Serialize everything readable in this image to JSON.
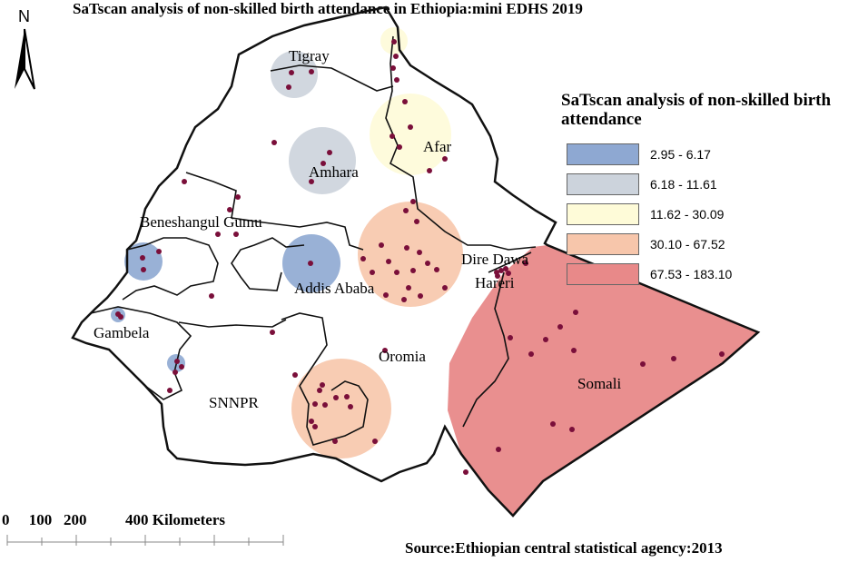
{
  "title": "SaTscan analysis of non-skilled birth attendance in Ethiopia:mini EDHS 2019",
  "north_arrow": {
    "label": "N",
    "icon": "north-arrow-icon"
  },
  "legend": {
    "title": "SaTscan analysis of non-skilled birth\n attendance",
    "items": [
      {
        "label": "2.95 - 6.17",
        "color": "#8ea8d2"
      },
      {
        "label": "6.18 - 11.61",
        "color": "#ccd3dc"
      },
      {
        "label": "11.62 - 30.09",
        "color": "#fefbd8"
      },
      {
        "label": "30.10 - 67.52",
        "color": "#f7c6ab"
      },
      {
        "label": "67.53 - 183.10",
        "color": "#e88989"
      }
    ]
  },
  "regions": {
    "tigray": "Tigray",
    "afar": "Afar",
    "amhara": "Amhara",
    "benishangul": "Beneshangul Gumu",
    "dire_dawa": "Dire Dawa",
    "addis_ababa": "Addis Ababa",
    "hareri": "Hareri",
    "gambela": "Gambela",
    "oromia": "Oromia",
    "somali": "Somali",
    "snnpr": "SNNPR"
  },
  "scale_bar": {
    "text": "0     100   200          400 Kilometers"
  },
  "source": "Source:Ethiopian central statistical agency:2013",
  "dot_color": "#7a0f3a"
}
